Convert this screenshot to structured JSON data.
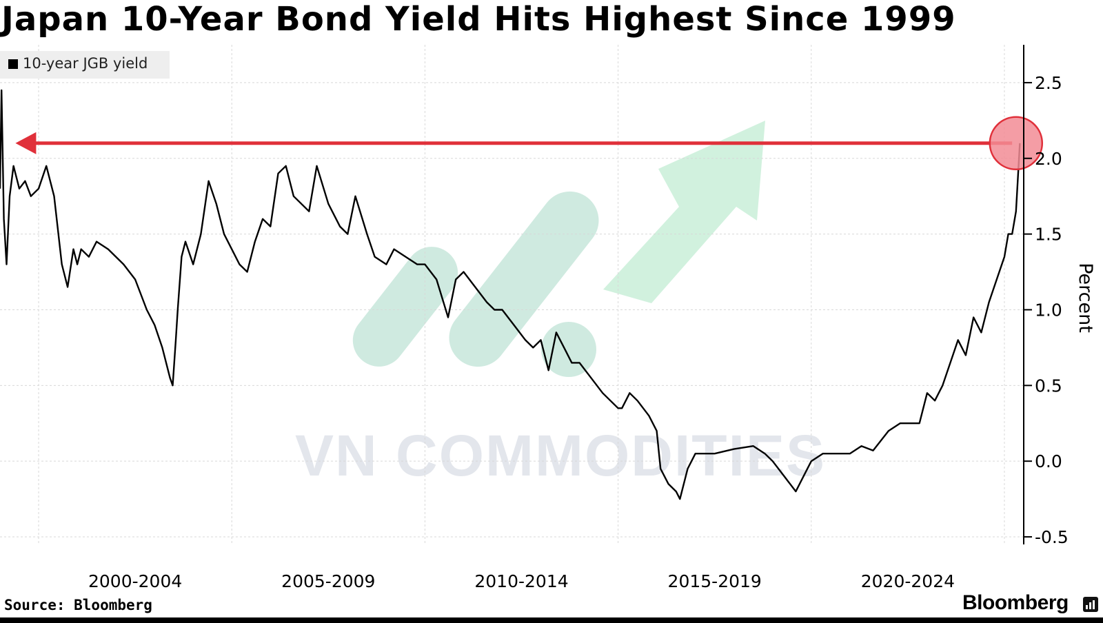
{
  "title": "Japan 10-Year Bond Yield Hits Highest Since 1999",
  "source": "Source: Bloomberg",
  "brand": "Bloomberg",
  "watermark": "VN COMMODITIES",
  "colors": {
    "line": "#000000",
    "annotation_red": "#e0303a",
    "circle_fill": "#f28c95",
    "grid": "#d8d8d8",
    "watermark_teal": "#bfe3d6",
    "watermark_green": "#c9efd8",
    "watermark_text": "#e3e6ec"
  },
  "chart_data": {
    "type": "line",
    "title": "Japan 10-Year Bond Yield Hits Highest Since 1999",
    "ylabel": "Percent",
    "xlabel": "",
    "x_tick_labels": [
      "2000-2004",
      "2005-2009",
      "2010-2014",
      "2015-2019",
      "2020-2024"
    ],
    "y_ticks": [
      "2.5",
      "2.0",
      "1.5",
      "1.0",
      "0.5",
      "0.0",
      "-0.5"
    ],
    "ylim": [
      -0.55,
      2.75
    ],
    "xlim": [
      1999.0,
      2025.5
    ],
    "grid": true,
    "legend": {
      "position": "top-left",
      "entries": [
        "10-year JGB yield"
      ]
    },
    "series": [
      {
        "name": "10-year JGB yield",
        "x": [
          1999.0,
          1999.04,
          1999.1,
          1999.17,
          1999.25,
          1999.35,
          1999.5,
          1999.65,
          1999.8,
          2000.0,
          2000.2,
          2000.4,
          2000.6,
          2000.75,
          2000.9,
          2001.0,
          2001.1,
          2001.3,
          2001.5,
          2001.8,
          2002.0,
          2002.2,
          2002.5,
          2002.8,
          2003.0,
          2003.2,
          2003.4,
          2003.47,
          2003.55,
          2003.6,
          2003.7,
          2003.8,
          2004.0,
          2004.2,
          2004.4,
          2004.6,
          2004.8,
          2005.0,
          2005.2,
          2005.4,
          2005.6,
          2005.8,
          2006.0,
          2006.2,
          2006.4,
          2006.6,
          2006.8,
          2007.0,
          2007.2,
          2007.5,
          2007.8,
          2008.0,
          2008.2,
          2008.5,
          2008.7,
          2009.0,
          2009.2,
          2009.5,
          2009.8,
          2010.0,
          2010.3,
          2010.6,
          2010.8,
          2011.0,
          2011.3,
          2011.6,
          2011.8,
          2012.0,
          2012.3,
          2012.6,
          2012.8,
          2013.0,
          2013.2,
          2013.4,
          2013.6,
          2013.8,
          2014.0,
          2014.3,
          2014.6,
          2014.8,
          2015.0,
          2015.1,
          2015.3,
          2015.5,
          2015.8,
          2016.0,
          2016.1,
          2016.3,
          2016.5,
          2016.6,
          2016.8,
          2017.0,
          2017.5,
          2018.0,
          2018.5,
          2018.8,
          2019.0,
          2019.3,
          2019.6,
          2019.8,
          2020.0,
          2020.3,
          2020.6,
          2021.0,
          2021.3,
          2021.6,
          2022.0,
          2022.3,
          2022.6,
          2022.8,
          2023.0,
          2023.2,
          2023.4,
          2023.6,
          2023.8,
          2024.0,
          2024.2,
          2024.4,
          2024.6,
          2024.8,
          2025.0,
          2025.1,
          2025.2,
          2025.3,
          2025.4
        ],
        "y": [
          1.8,
          2.45,
          1.6,
          1.3,
          1.75,
          1.95,
          1.8,
          1.85,
          1.75,
          1.8,
          1.95,
          1.75,
          1.3,
          1.15,
          1.4,
          1.3,
          1.4,
          1.35,
          1.45,
          1.4,
          1.35,
          1.3,
          1.2,
          1.0,
          0.9,
          0.75,
          0.55,
          0.5,
          0.8,
          1.0,
          1.35,
          1.45,
          1.3,
          1.5,
          1.85,
          1.7,
          1.5,
          1.4,
          1.3,
          1.25,
          1.45,
          1.6,
          1.55,
          1.9,
          1.95,
          1.75,
          1.7,
          1.65,
          1.95,
          1.7,
          1.55,
          1.5,
          1.75,
          1.5,
          1.35,
          1.3,
          1.4,
          1.35,
          1.3,
          1.3,
          1.2,
          0.95,
          1.2,
          1.25,
          1.15,
          1.05,
          1.0,
          1.0,
          0.9,
          0.8,
          0.75,
          0.8,
          0.6,
          0.85,
          0.75,
          0.65,
          0.65,
          0.55,
          0.45,
          0.4,
          0.35,
          0.35,
          0.45,
          0.4,
          0.3,
          0.2,
          -0.05,
          -0.15,
          -0.2,
          -0.25,
          -0.05,
          0.05,
          0.05,
          0.08,
          0.1,
          0.05,
          0.0,
          -0.1,
          -0.2,
          -0.1,
          0.0,
          0.05,
          0.05,
          0.05,
          0.1,
          0.07,
          0.2,
          0.25,
          0.25,
          0.25,
          0.45,
          0.4,
          0.5,
          0.65,
          0.8,
          0.7,
          0.95,
          0.85,
          1.05,
          1.2,
          1.35,
          1.5,
          1.5,
          1.65,
          2.1
        ]
      }
    ],
    "annotations": [
      {
        "type": "horizontal-arrow",
        "y": 2.1,
        "x_from": 2025.2,
        "x_to": 1999.4
      },
      {
        "type": "circle-highlight",
        "x": 2025.3,
        "y": 2.1
      }
    ]
  }
}
